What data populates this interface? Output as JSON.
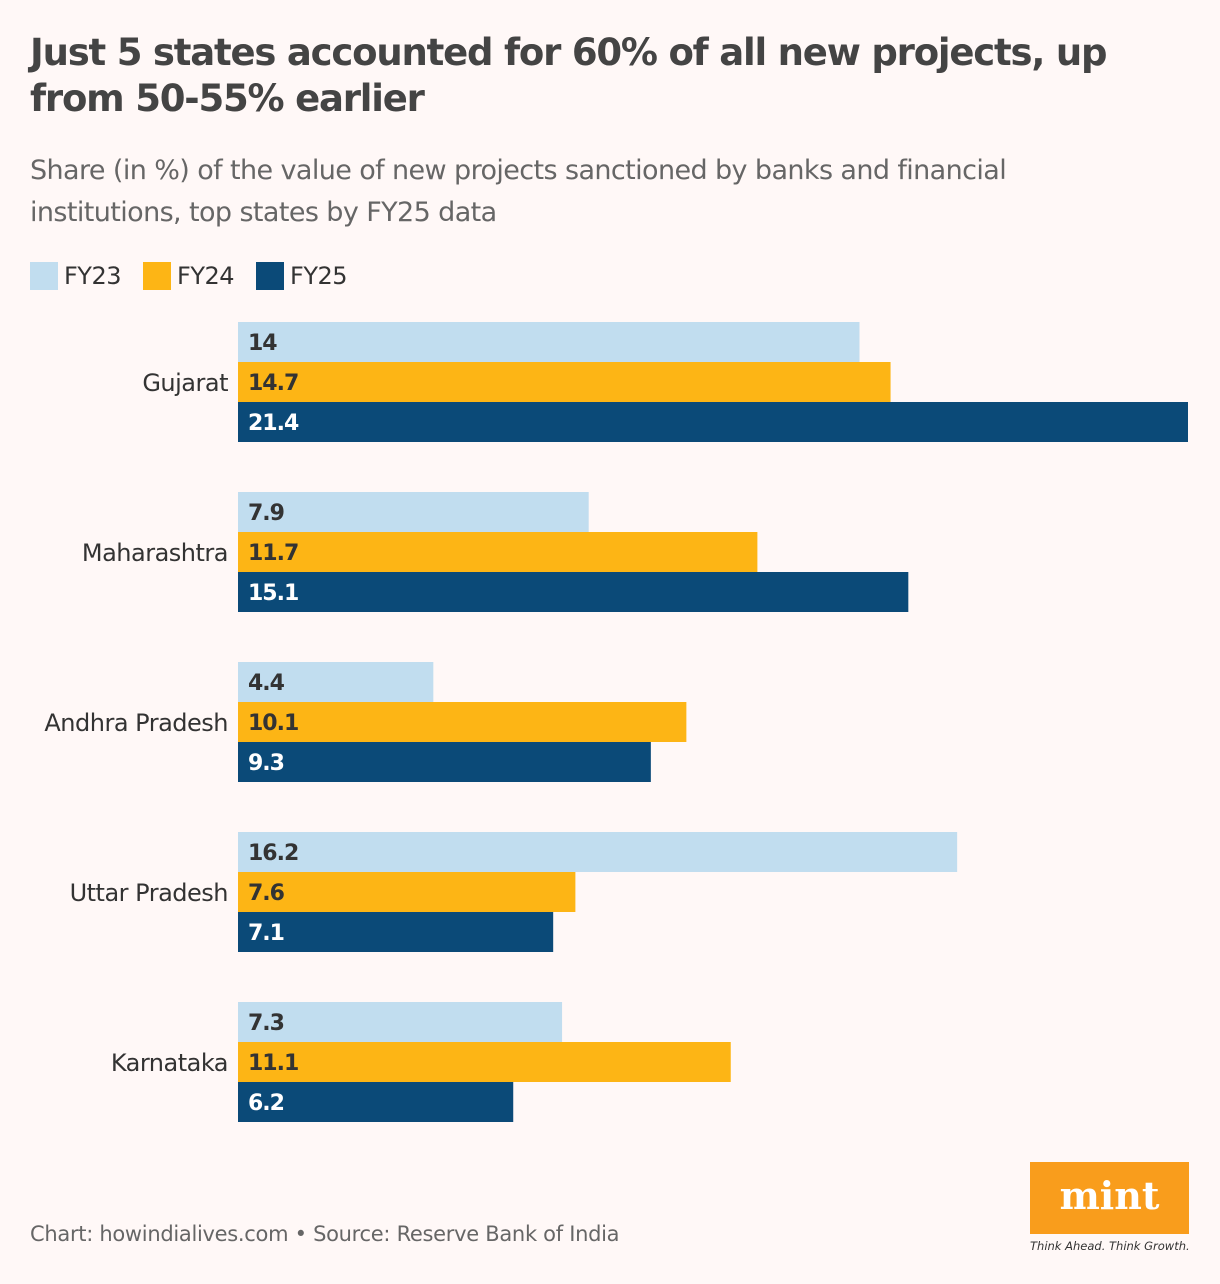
{
  "header": {
    "title": "Just 5 states accounted for 60% of all new projects, up from 50-55% earlier",
    "subtitle": "Share (in %) of the value of new projects sanctioned by banks and financial institutions, top states by FY25 data"
  },
  "chart_data": {
    "type": "bar",
    "orientation": "horizontal",
    "title": "Just 5 states accounted for 60% of all new projects, up from 50-55% earlier",
    "subtitle": "Share (in %) of the value of new projects sanctioned by banks and financial institutions, top states by FY25 data",
    "categories": [
      "Gujarat",
      "Maharashtra",
      "Andhra Pradesh",
      "Uttar Pradesh",
      "Karnataka"
    ],
    "series": [
      {
        "name": "FY23",
        "color": "#c1ddef",
        "values": [
          14,
          7.9,
          4.4,
          16.2,
          7.3
        ]
      },
      {
        "name": "FY24",
        "color": "#fdb515",
        "values": [
          14.7,
          11.7,
          10.1,
          7.6,
          11.1
        ]
      },
      {
        "name": "FY25",
        "color": "#0b4a78",
        "values": [
          21.4,
          15.1,
          9.3,
          7.1,
          6.2
        ]
      }
    ],
    "xlim": [
      0,
      21.4
    ],
    "grid": false,
    "legend": "top-left",
    "data_labels": true
  },
  "footer": {
    "credit": "Chart: howindialives.com • Source: Reserve Bank of India"
  },
  "logo": {
    "text": "mint",
    "tagline": "Think Ahead. Think Growth."
  }
}
